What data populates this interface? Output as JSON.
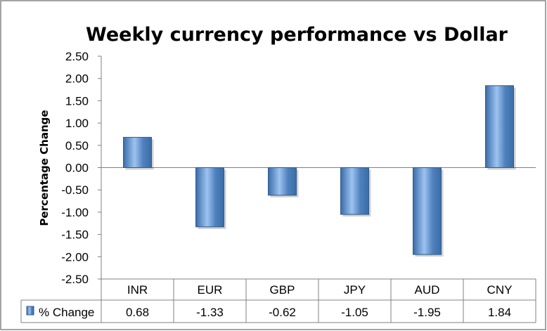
{
  "chart_data": {
    "type": "bar",
    "title": "Weekly currency performance vs Dollar",
    "ylabel": "Percentage Change",
    "xlabel": "",
    "categories": [
      "INR",
      "EUR",
      "GBP",
      "JPY",
      "AUD",
      "CNY"
    ],
    "series": [
      {
        "name": "% Change",
        "values": [
          0.68,
          -1.33,
          -0.62,
          -1.05,
          -1.95,
          1.84
        ],
        "value_labels": [
          "0.68",
          "-1.33",
          "-0.62",
          "-1.05",
          "-1.95",
          "1.84"
        ]
      }
    ],
    "ylim": [
      -2.5,
      2.5
    ],
    "yticks": [
      2.5,
      2.0,
      1.5,
      1.0,
      0.5,
      0.0,
      -0.5,
      -1.0,
      -1.5,
      -2.0,
      -2.5
    ],
    "ytick_labels": [
      "2.50",
      "2.00",
      "1.50",
      "1.00",
      "0.50",
      "0.00",
      "-0.50",
      "-1.00",
      "-1.50",
      "-2.00",
      "-2.50"
    ],
    "grid": false,
    "legend": "data-table",
    "data_table": true,
    "colors": {
      "bar_fill": "#4F81BD",
      "bar_light": "#9DC3F0",
      "bar_dark": "#3A6CA8",
      "bar_stroke": "#2E5C8A",
      "axis": "#808080",
      "border": "#868686"
    }
  }
}
